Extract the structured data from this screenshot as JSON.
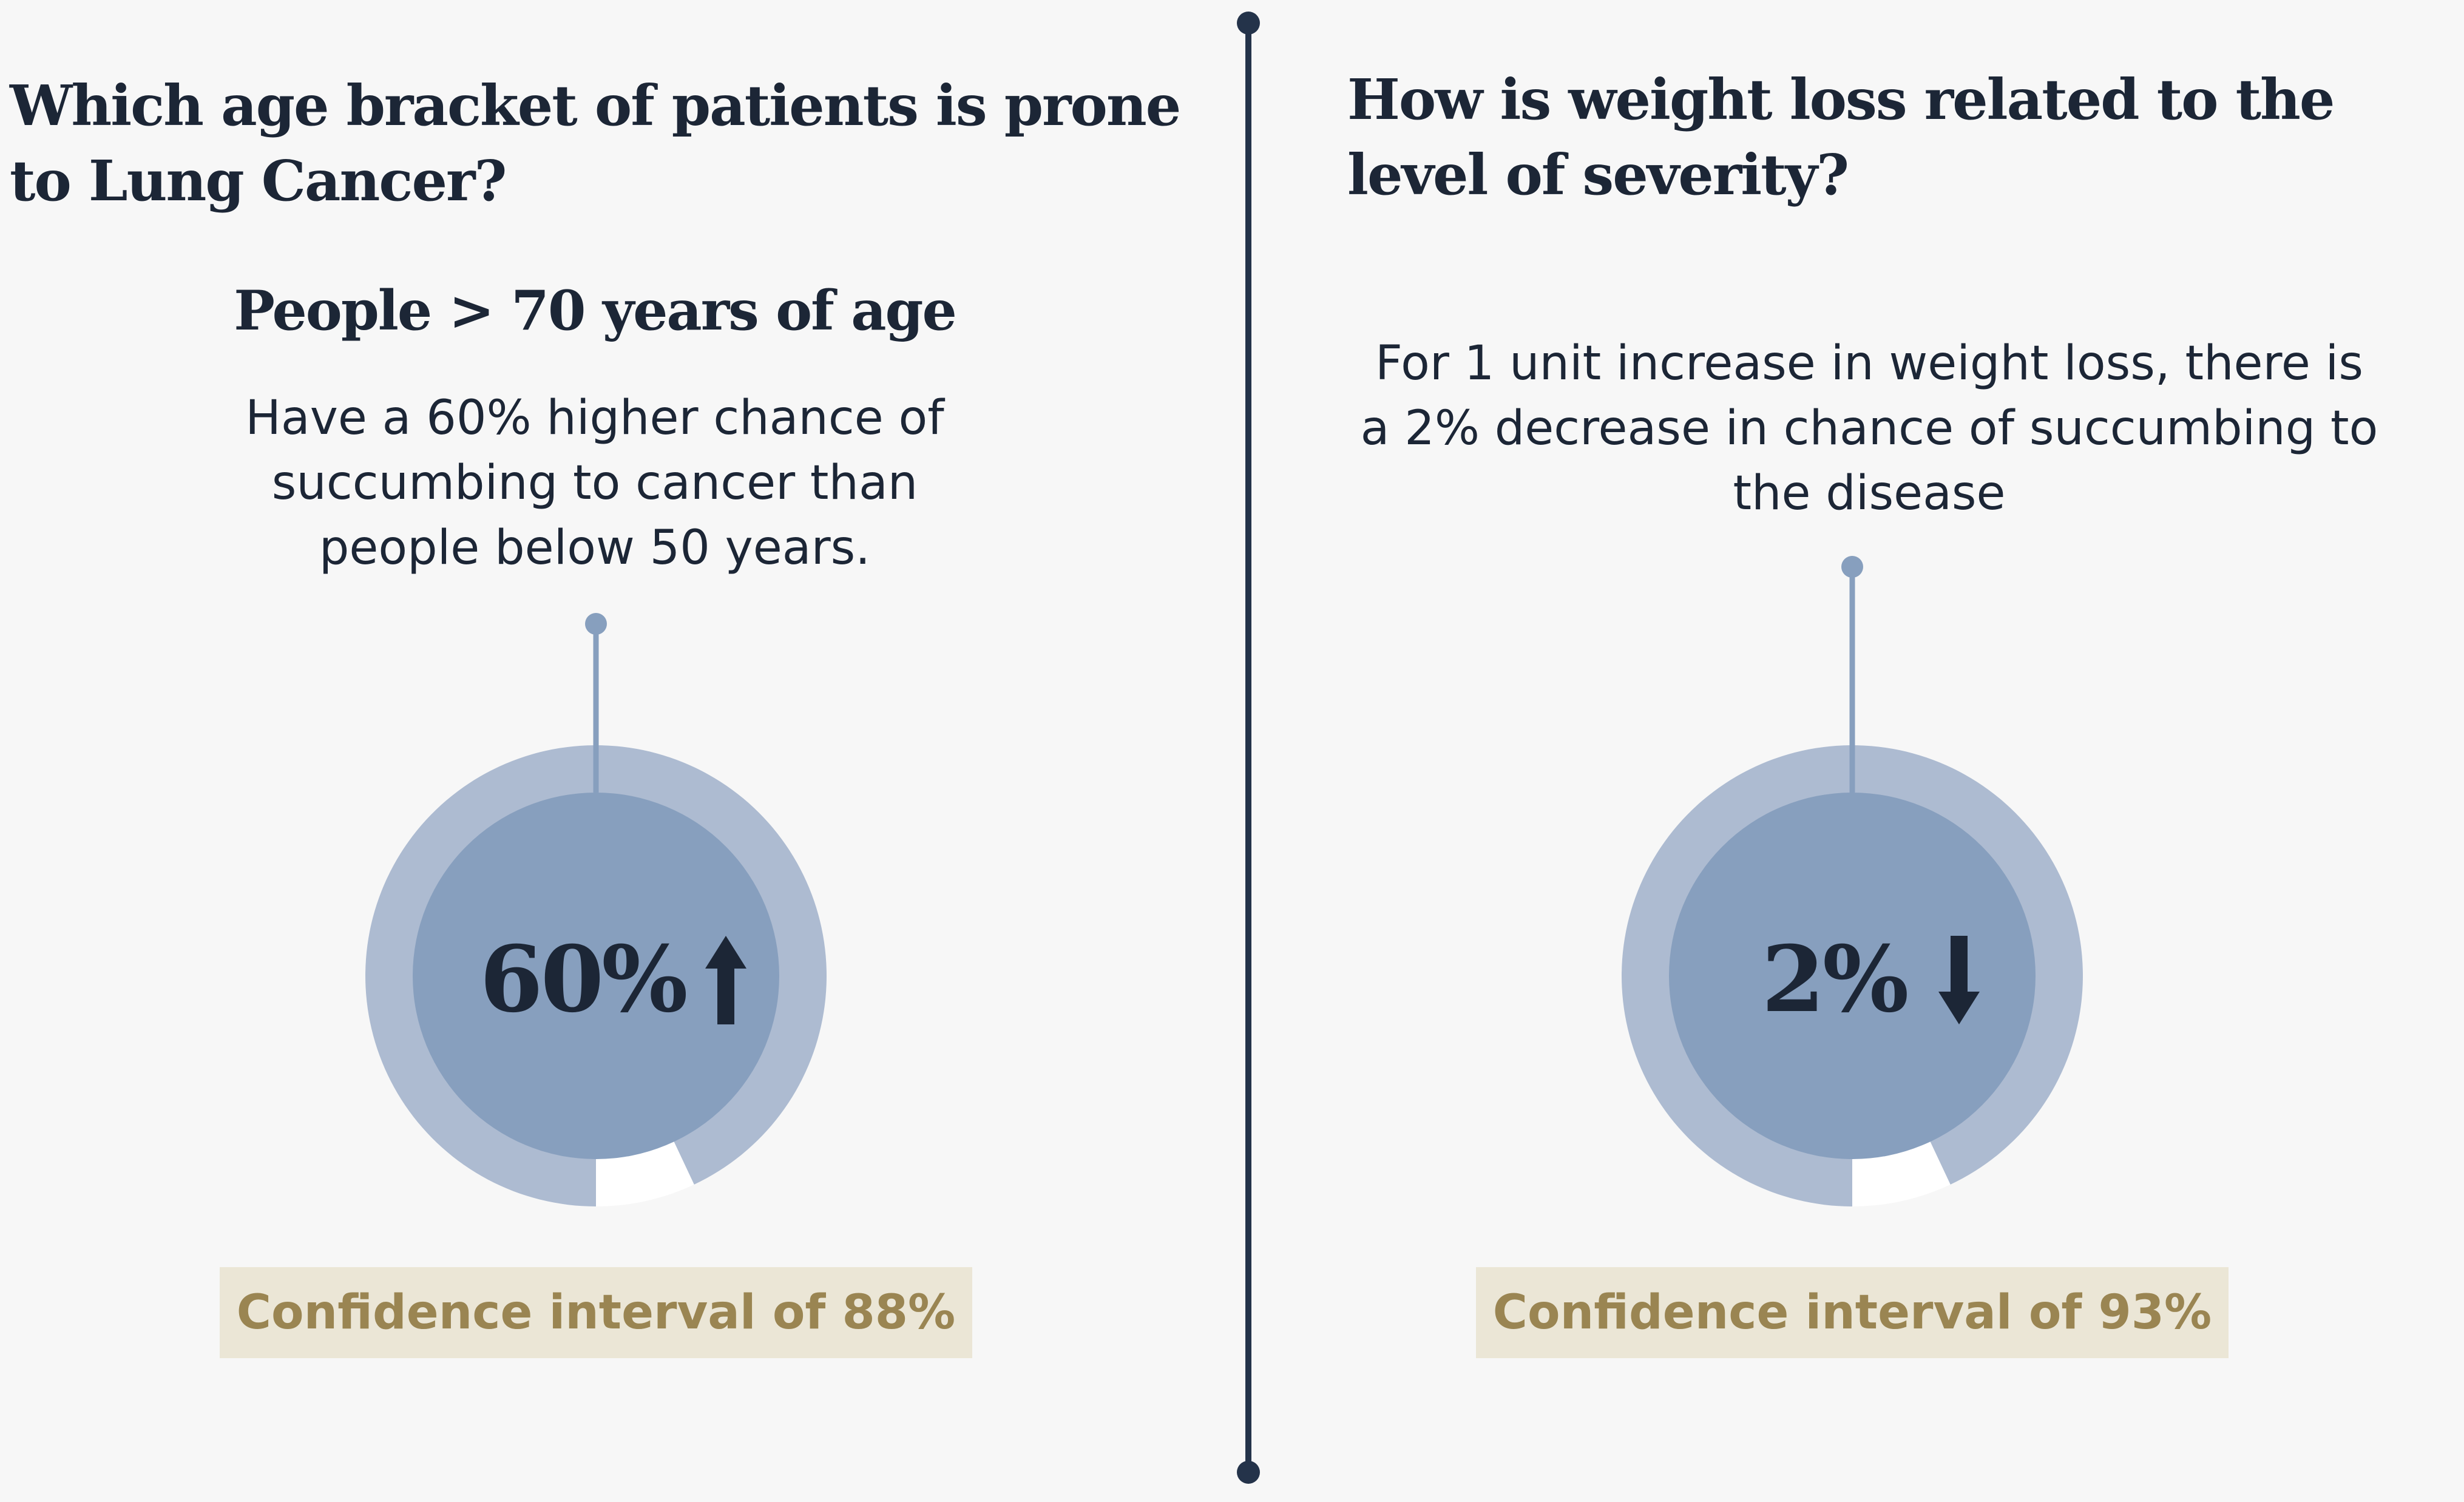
{
  "chart_data": [
    {
      "type": "pie",
      "question": "Which age bracket of patients is prone to Lung Cancer?",
      "subheading": "People > 70 years of age",
      "description": "Have a 60% higher chance of succumbing to cancer than people below 50 years.",
      "value_label": "60%",
      "direction": "up",
      "ring_fraction": 0.93,
      "confidence_label": "Confidence interval of 88%"
    },
    {
      "type": "pie",
      "question": "How is weight loss related to the level of severity?",
      "subheading": "",
      "description": "For 1 unit increase in weight loss, there is a 2% decrease in chance of succumbing to the disease",
      "value_label": "2%",
      "direction": "down",
      "ring_fraction": 0.93,
      "confidence_label": "Confidence interval of 93%"
    }
  ],
  "colors": {
    "background": "#f7f7f7",
    "ink": "#1c2636",
    "divider": "#24334a",
    "outer_ring": "#adbbd1",
    "inner_disc": "#879fbe",
    "gap": "#ffffff",
    "pointer": "#879fbe",
    "ci_background": "#ebe6d6",
    "ci_text": "#9a8552"
  },
  "icons": {
    "up": "arrow-up-icon",
    "down": "arrow-down-icon"
  }
}
